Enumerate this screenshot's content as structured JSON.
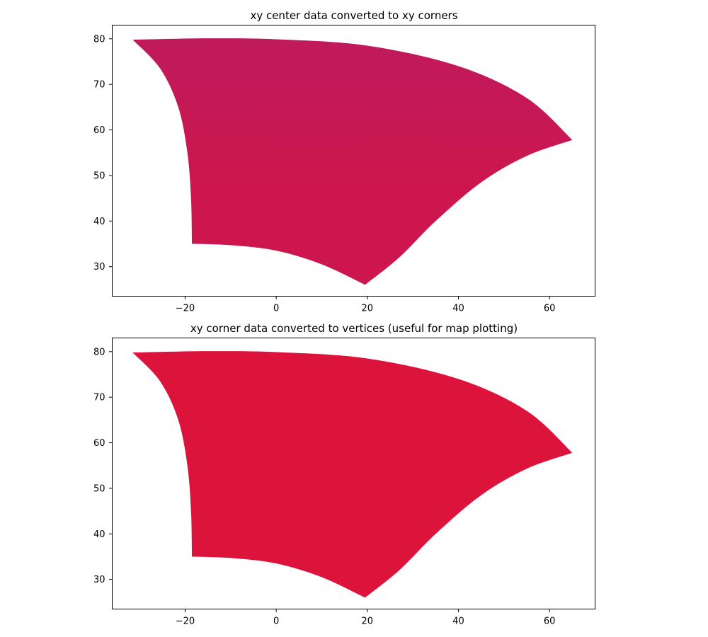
{
  "chart_data": [
    {
      "type": "area",
      "title": "xy center data converted to xy corners",
      "xlabel": "",
      "ylabel": "",
      "xlim": [
        -36,
        70
      ],
      "ylim": [
        23.5,
        83
      ],
      "xticks": [
        -20,
        0,
        20,
        40,
        60
      ],
      "xtick_labels": [
        "−20",
        "0",
        "20",
        "40",
        "60"
      ],
      "yticks": [
        30,
        40,
        50,
        60,
        70,
        80
      ],
      "ytick_labels": [
        "30",
        "40",
        "50",
        "60",
        "70",
        "80"
      ],
      "grid": false,
      "fill_color": "#cc164d",
      "gradient_top_color": "#bf1a5c",
      "corners": {
        "top_left": [
          -31.5,
          79.8
        ],
        "top_right": [
          65,
          57.8
        ],
        "bottom_right": [
          19.5,
          26
        ],
        "bottom_left": [
          -18.5,
          35
        ]
      },
      "edges": {
        "top": [
          [
            -31.5,
            79.8
          ],
          [
            -15,
            80.1
          ],
          [
            0,
            79.9
          ],
          [
            20,
            78.5
          ],
          [
            40,
            74
          ],
          [
            55,
            67
          ],
          [
            65,
            57.8
          ]
        ],
        "right": [
          [
            65,
            57.8
          ],
          [
            55,
            54.3
          ],
          [
            45,
            48.5
          ],
          [
            35,
            40
          ],
          [
            27,
            32
          ],
          [
            19.5,
            26
          ]
        ],
        "bottom": [
          [
            19.5,
            26
          ],
          [
            10,
            30.5
          ],
          [
            0,
            33.5
          ],
          [
            -10,
            34.7
          ],
          [
            -18.5,
            35
          ]
        ],
        "left": [
          [
            -18.5,
            35
          ],
          [
            -18.7,
            45
          ],
          [
            -19.5,
            55
          ],
          [
            -21.5,
            65
          ],
          [
            -25.5,
            73.5
          ],
          [
            -31.5,
            79.8
          ]
        ]
      }
    },
    {
      "type": "area",
      "title": "xy corner data converted to vertices (useful for map plotting)",
      "xlabel": "",
      "ylabel": "",
      "xlim": [
        -36,
        70
      ],
      "ylim": [
        23.5,
        83
      ],
      "xticks": [
        -20,
        0,
        20,
        40,
        60
      ],
      "xtick_labels": [
        "−20",
        "0",
        "20",
        "40",
        "60"
      ],
      "yticks": [
        30,
        40,
        50,
        60,
        70,
        80
      ],
      "ytick_labels": [
        "30",
        "40",
        "50",
        "60",
        "70",
        "80"
      ],
      "grid": false,
      "fill_color": "#dc143c",
      "corners": {
        "top_left": [
          -31.5,
          79.8
        ],
        "top_right": [
          65,
          57.8
        ],
        "bottom_right": [
          19.5,
          26
        ],
        "bottom_left": [
          -18.5,
          35
        ]
      },
      "edges": {
        "top": [
          [
            -31.5,
            79.8
          ],
          [
            -15,
            80.1
          ],
          [
            0,
            79.9
          ],
          [
            20,
            78.5
          ],
          [
            40,
            74
          ],
          [
            55,
            67
          ],
          [
            65,
            57.8
          ]
        ],
        "right": [
          [
            65,
            57.8
          ],
          [
            55,
            54.3
          ],
          [
            45,
            48.5
          ],
          [
            35,
            40
          ],
          [
            27,
            32
          ],
          [
            19.5,
            26
          ]
        ],
        "bottom": [
          [
            19.5,
            26
          ],
          [
            10,
            30.5
          ],
          [
            0,
            33.5
          ],
          [
            -10,
            34.7
          ],
          [
            -18.5,
            35
          ]
        ],
        "left": [
          [
            -18.5,
            35
          ],
          [
            -18.7,
            45
          ],
          [
            -19.5,
            55
          ],
          [
            -21.5,
            65
          ],
          [
            -25.5,
            73.5
          ],
          [
            -31.5,
            79.8
          ]
        ]
      }
    }
  ]
}
